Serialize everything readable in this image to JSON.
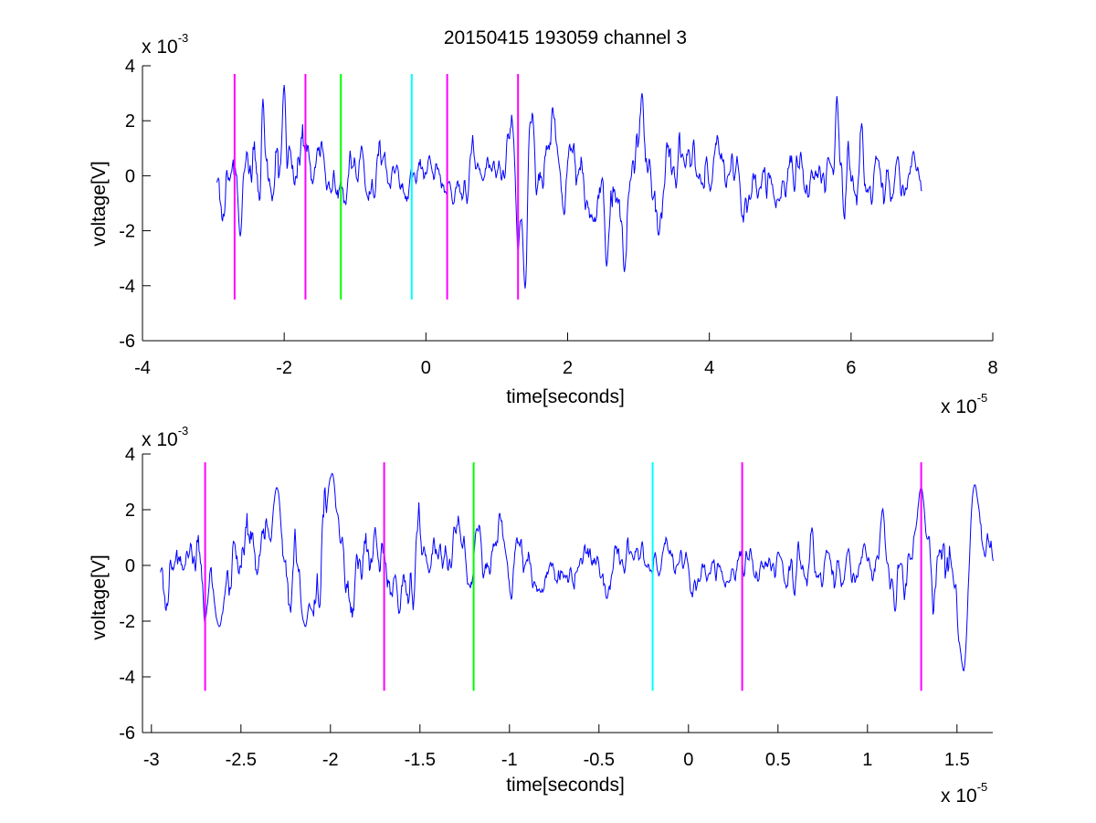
{
  "title": "20150415 193059 channel 3",
  "chart_data": [
    {
      "type": "line",
      "xlabel": "time[seconds]",
      "ylabel": "voltage[V]",
      "x_exponent_base": "x 10",
      "x_exponent": "-5",
      "y_exponent_base": "x 10",
      "y_exponent": "-3",
      "xlim": [
        -4,
        8
      ],
      "ylim": [
        -6,
        4
      ],
      "xticks": [
        -4,
        -2,
        0,
        2,
        4,
        6,
        8
      ],
      "xtick_labels": [
        "-4",
        "-2",
        "0",
        "2",
        "4",
        "6",
        "8"
      ],
      "yticks": [
        -6,
        -4,
        -2,
        0,
        2,
        4
      ],
      "ytick_labels": [
        "-6",
        "-4",
        "-2",
        "0",
        "2",
        "4"
      ],
      "grid": false,
      "signal": {
        "color": "#0000ff",
        "x_start": -2.95,
        "x_end": 7.0,
        "x_step": 0.01,
        "envelope_x": [
          -2.95,
          -2.5,
          -2.0,
          -1.5,
          -1.0,
          -0.5,
          0.0,
          0.5,
          1.0,
          1.3,
          1.5,
          2.0,
          2.5,
          2.8,
          3.0,
          3.5,
          4.0,
          4.5,
          5.0,
          5.5,
          6.0,
          6.5,
          7.0
        ],
        "envelope_amp": [
          1.1,
          1.4,
          1.7,
          1.2,
          0.9,
          0.8,
          0.8,
          0.8,
          0.8,
          1.6,
          1.6,
          1.0,
          1.7,
          2.0,
          1.7,
          1.3,
          1.2,
          1.2,
          1.2,
          1.1,
          1.2,
          1.0,
          0.9
        ],
        "peaks": [
          [
            -2.0,
            3.3
          ],
          [
            -2.3,
            2.8
          ],
          [
            2.8,
            -3.5
          ],
          [
            1.4,
            -4.1
          ],
          [
            1.3,
            -2.8
          ],
          [
            3.05,
            3.0
          ],
          [
            5.8,
            2.9
          ],
          [
            -2.62,
            -2.2
          ],
          [
            2.55,
            -3.3
          ]
        ]
      },
      "markers": [
        {
          "x": -2.7,
          "color": "#ff00ff",
          "y_range": [
            -4.5,
            3.7
          ]
        },
        {
          "x": -1.7,
          "color": "#ff00ff",
          "y_range": [
            -4.5,
            3.7
          ]
        },
        {
          "x": -1.2,
          "color": "#00ff00",
          "y_range": [
            -4.5,
            3.7
          ]
        },
        {
          "x": -0.2,
          "color": "#00ffff",
          "y_range": [
            -4.5,
            3.7
          ]
        },
        {
          "x": 0.3,
          "color": "#ff00ff",
          "y_range": [
            -4.5,
            3.7
          ]
        },
        {
          "x": 1.3,
          "color": "#ff00ff",
          "y_range": [
            -4.5,
            3.7
          ]
        }
      ]
    },
    {
      "type": "line",
      "xlabel": "time[seconds]",
      "ylabel": "voltage[V]",
      "x_exponent_base": "x 10",
      "x_exponent": "-5",
      "y_exponent_base": "x 10",
      "y_exponent": "-3",
      "xlim": [
        -3.05,
        1.7
      ],
      "ylim": [
        -6,
        4
      ],
      "xticks": [
        -3,
        -2.5,
        -2,
        -1.5,
        -1,
        -0.5,
        0,
        0.5,
        1,
        1.5
      ],
      "xtick_labels": [
        "-3",
        "-2.5",
        "-2",
        "-1.5",
        "-1",
        "-0.5",
        "0",
        "0.5",
        "1",
        "1.5"
      ],
      "yticks": [
        -6,
        -4,
        -2,
        0,
        2,
        4
      ],
      "ytick_labels": [
        "-6",
        "-4",
        "-2",
        "0",
        "2",
        "4"
      ],
      "grid": false,
      "signal": {
        "color": "#0000ff",
        "x_start": -2.95,
        "x_end": 1.7,
        "x_step": 0.004,
        "envelope_x": [
          -2.95,
          -2.5,
          -2.0,
          -1.5,
          -1.0,
          -0.5,
          0.0,
          0.5,
          1.0,
          1.3,
          1.5,
          1.7
        ],
        "envelope_amp": [
          1.1,
          1.4,
          1.7,
          1.2,
          0.9,
          0.8,
          0.8,
          0.8,
          0.8,
          1.6,
          1.6,
          1.3
        ],
        "peaks": [
          [
            -1.99,
            3.3
          ],
          [
            -2.3,
            2.8
          ],
          [
            1.3,
            2.8
          ],
          [
            1.54,
            -4.1
          ],
          [
            1.6,
            2.9
          ],
          [
            -2.62,
            -2.2
          ],
          [
            -2.14,
            -2.2
          ]
        ]
      },
      "markers": [
        {
          "x": -2.7,
          "color": "#ff00ff",
          "y_range": [
            -4.5,
            3.7
          ]
        },
        {
          "x": -1.7,
          "color": "#ff00ff",
          "y_range": [
            -4.5,
            3.7
          ]
        },
        {
          "x": -1.2,
          "color": "#00ff00",
          "y_range": [
            -4.5,
            3.7
          ]
        },
        {
          "x": -0.2,
          "color": "#00ffff",
          "y_range": [
            -4.5,
            3.7
          ]
        },
        {
          "x": 0.3,
          "color": "#ff00ff",
          "y_range": [
            -4.5,
            3.7
          ]
        },
        {
          "x": 1.3,
          "color": "#ff00ff",
          "y_range": [
            -4.5,
            3.7
          ]
        }
      ]
    }
  ]
}
